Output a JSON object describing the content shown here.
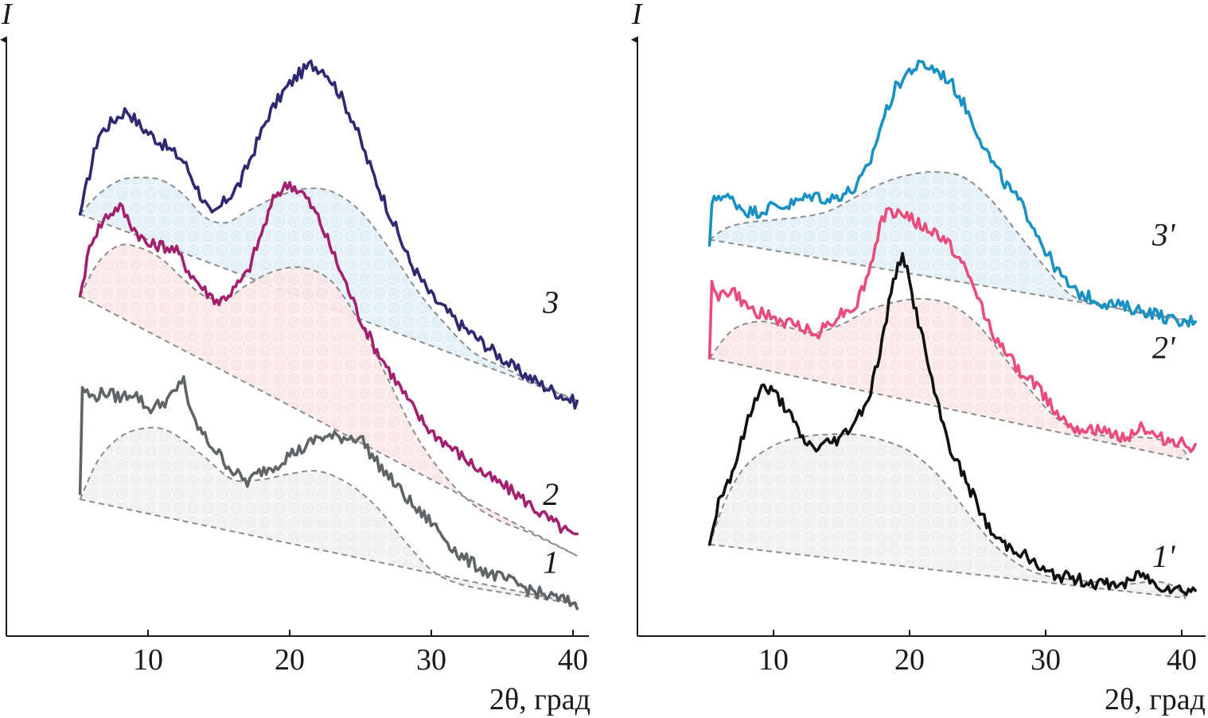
{
  "chart_data": [
    {
      "type": "line",
      "panel": "left",
      "xlabel": "2θ, град",
      "ylabel": "I",
      "xlim": [
        0,
        41
      ],
      "ylim": [
        0,
        100
      ],
      "xticks": [
        10,
        20,
        30,
        40
      ],
      "colors": {
        "1": "#5f6566",
        "2": "#a3206f",
        "3": "#2e2a72",
        "fill_1": "#efefef",
        "fill_2": "#fde3e3",
        "fill_3": "#dcecf6",
        "envelope": "#8c8c8c"
      },
      "series": [
        {
          "name": "3",
          "x": [
            5.2,
            6.5,
            7.5,
            8.5,
            9.5,
            10.5,
            11.5,
            12.5,
            13.5,
            14.5,
            15.5,
            16.5,
            17.5,
            18.5,
            19.5,
            20.5,
            21.5,
            22.5,
            23.5,
            24.5,
            25.5,
            26.5,
            27.5,
            28.5,
            30,
            32,
            34,
            36,
            38,
            40.3
          ],
          "values": [
            70.5,
            84.5,
            87,
            89,
            86,
            84,
            82,
            80,
            75,
            70,
            73,
            76,
            82,
            88,
            92,
            95,
            97,
            96,
            92,
            87,
            80,
            74,
            68,
            62,
            56,
            51,
            47,
            43,
            40,
            37
          ],
          "baseline": [
            {
              "x": 5.2,
              "y": 70.5
            },
            {
              "x": 6.5,
              "y": 74
            },
            {
              "x": 8,
              "y": 76.5
            },
            {
              "x": 9.5,
              "y": 77
            },
            {
              "x": 11,
              "y": 76.5
            },
            {
              "x": 12.5,
              "y": 74
            },
            {
              "x": 14,
              "y": 70
            },
            {
              "x": 15.5,
              "y": 69
            },
            {
              "x": 17,
              "y": 71
            },
            {
              "x": 19,
              "y": 73.5
            },
            {
              "x": 21,
              "y": 75
            },
            {
              "x": 23,
              "y": 74.5
            },
            {
              "x": 25,
              "y": 71
            },
            {
              "x": 27,
              "y": 64.5
            },
            {
              "x": 29,
              "y": 57
            },
            {
              "x": 31,
              "y": 51
            },
            {
              "x": 33,
              "y": 46
            },
            {
              "x": 35,
              "y": 43.5
            },
            {
              "x": 37,
              "y": 41
            },
            {
              "x": 40.3,
              "y": 37.5
            }
          ],
          "floor": [
            5.2,
            70.5,
            40.3,
            37.5
          ]
        },
        {
          "name": "2",
          "x": [
            5.2,
            6.0,
            7.0,
            8.0,
            9.0,
            10.0,
            11.0,
            12.0,
            13.0,
            14.0,
            15.0,
            16.0,
            17.0,
            18.0,
            19.0,
            20.0,
            21.0,
            22.0,
            23.0,
            24.0,
            25.0,
            26.0,
            27.0,
            28.0,
            29.0,
            30.0,
            32.0,
            34.0,
            36.0,
            38.0,
            40.3
          ],
          "values": [
            56,
            66,
            70,
            72,
            68,
            65,
            65,
            64,
            60,
            57,
            55,
            57,
            60,
            67,
            74,
            76,
            74,
            70,
            64,
            58,
            52,
            47,
            43,
            39,
            35,
            32,
            28,
            24,
            21,
            17,
            13
          ],
          "baseline": [
            {
              "x": 5.2,
              "y": 56
            },
            {
              "x": 6.5,
              "y": 62
            },
            {
              "x": 8,
              "y": 65
            },
            {
              "x": 9.5,
              "y": 64.5
            },
            {
              "x": 11,
              "y": 62.5
            },
            {
              "x": 12.5,
              "y": 59
            },
            {
              "x": 14,
              "y": 56
            },
            {
              "x": 15.5,
              "y": 55.5
            },
            {
              "x": 17,
              "y": 58
            },
            {
              "x": 19,
              "y": 60.5
            },
            {
              "x": 21,
              "y": 61
            },
            {
              "x": 23,
              "y": 58.5
            },
            {
              "x": 25,
              "y": 51
            },
            {
              "x": 27,
              "y": 41
            },
            {
              "x": 29,
              "y": 31
            },
            {
              "x": 31,
              "y": 24
            },
            {
              "x": 33,
              "y": 19
            },
            {
              "x": 35,
              "y": 16
            },
            {
              "x": 37,
              "y": 14
            },
            {
              "x": 40.3,
              "y": 10
            }
          ],
          "floor": [
            5.2,
            56,
            40.3,
            10
          ]
        },
        {
          "name": "1",
          "x": [
            5.2,
            5.3,
            6.0,
            7.0,
            8.0,
            9.0,
            10.0,
            11.0,
            12.0,
            12.5,
            13.0,
            14.0,
            15.0,
            16.0,
            17.0,
            18.0,
            19.0,
            20.0,
            21.0,
            22.0,
            23.0,
            24.0,
            25.0,
            26.0,
            27.0,
            28.0,
            29.0,
            30.0,
            31.0,
            32.0,
            34.0,
            36.0,
            38.0,
            40.3
          ],
          "values": [
            21,
            40,
            38,
            39,
            38,
            39,
            36,
            37,
            39,
            42,
            35,
            31,
            28,
            25,
            23,
            25,
            26,
            28,
            29,
            31,
            31,
            31,
            31,
            27,
            24,
            21,
            18,
            16,
            13,
            10,
            7,
            5,
            3,
            1.5
          ],
          "baseline": [
            {
              "x": 5.2,
              "y": 20
            },
            {
              "x": 6.5,
              "y": 27
            },
            {
              "x": 8,
              "y": 31
            },
            {
              "x": 9.5,
              "y": 32.5
            },
            {
              "x": 11,
              "y": 32.5
            },
            {
              "x": 12.5,
              "y": 30.5
            },
            {
              "x": 14,
              "y": 27.5
            },
            {
              "x": 16,
              "y": 23.5
            },
            {
              "x": 18,
              "y": 23.5
            },
            {
              "x": 20,
              "y": 24.5
            },
            {
              "x": 22,
              "y": 25
            },
            {
              "x": 24,
              "y": 23
            },
            {
              "x": 26,
              "y": 19
            },
            {
              "x": 28,
              "y": 13
            },
            {
              "x": 30,
              "y": 7.5
            },
            {
              "x": 32,
              "y": 5
            },
            {
              "x": 35,
              "y": 3.5
            },
            {
              "x": 40.3,
              "y": 1.5
            }
          ],
          "floor": [
            5.2,
            20,
            40.3,
            1.5
          ]
        }
      ],
      "labels": [
        {
          "text": "3",
          "x": 39,
          "y": 53
        },
        {
          "text": "2",
          "x": 39,
          "y": 19
        },
        {
          "text": "1",
          "x": 39,
          "y": 7
        }
      ]
    },
    {
      "type": "line",
      "panel": "right",
      "xlabel": "2θ, град",
      "ylabel": "I",
      "xlim": [
        0,
        41
      ],
      "ylim": [
        0,
        100
      ],
      "xticks": [
        10,
        20,
        30,
        40
      ],
      "colors": {
        "1'": "#111111",
        "2'": "#ea4c7c",
        "3'": "#1a91c4",
        "fill_1": "#efefef",
        "fill_2": "#fde3e3",
        "fill_3": "#dcecf6",
        "envelope": "#8c8c8c"
      },
      "series": [
        {
          "name": "3'",
          "x": [
            5.3,
            5.4,
            6.0,
            7.0,
            8.0,
            9.0,
            10.0,
            11.0,
            12.0,
            13.0,
            14.0,
            15.0,
            16.0,
            17.0,
            18.0,
            19.0,
            20.0,
            21.0,
            22.0,
            23.0,
            24.0,
            25.0,
            26.0,
            27.0,
            28.0,
            29.0,
            30.0,
            31.0,
            32.0,
            34.0,
            36.0,
            38.0,
            40.0,
            41.0
          ],
          "values": [
            65,
            72,
            74,
            73,
            71,
            71,
            72,
            72,
            73,
            74,
            73,
            74,
            75,
            79,
            87,
            93,
            96,
            97,
            96,
            94,
            90,
            85,
            80,
            76,
            73,
            69,
            64,
            60,
            57,
            55,
            54,
            53,
            51,
            52
          ],
          "baseline": [
            {
              "x": 5.3,
              "y": 66
            },
            {
              "x": 6.5,
              "y": 68
            },
            {
              "x": 8,
              "y": 69
            },
            {
              "x": 10,
              "y": 69.5
            },
            {
              "x": 12,
              "y": 70
            },
            {
              "x": 14,
              "y": 71
            },
            {
              "x": 16,
              "y": 73.5
            },
            {
              "x": 18,
              "y": 76
            },
            {
              "x": 20,
              "y": 77.5
            },
            {
              "x": 22,
              "y": 78
            },
            {
              "x": 24,
              "y": 77
            },
            {
              "x": 26,
              "y": 73
            },
            {
              "x": 28,
              "y": 67
            },
            {
              "x": 30,
              "y": 61
            },
            {
              "x": 32,
              "y": 56
            },
            {
              "x": 35,
              "y": 54
            },
            {
              "x": 38,
              "y": 52.5
            },
            {
              "x": 41,
              "y": 51.5
            }
          ],
          "floor": [
            5.3,
            66,
            41,
            51.5
          ]
        },
        {
          "name": "2'",
          "x": [
            5.3,
            5.4,
            6.0,
            7.0,
            8.0,
            9.0,
            10.0,
            11.0,
            12.0,
            13.0,
            14.0,
            15.0,
            16.0,
            17.0,
            18.0,
            19.0,
            20.0,
            21.0,
            22.0,
            23.0,
            24.0,
            25.0,
            26.0,
            27.0,
            28.0,
            29.0,
            30.0,
            31.0,
            32.0,
            34.0,
            36.0,
            37.0,
            38.0,
            40.0,
            41.0
          ],
          "values": [
            45,
            59,
            56,
            57,
            54,
            53,
            52,
            51,
            51,
            49,
            51,
            53,
            54,
            60,
            70,
            71,
            70,
            68,
            67,
            65,
            61,
            56,
            50,
            46,
            43,
            41,
            38,
            35,
            33,
            32,
            31,
            33,
            31,
            30,
            29
          ],
          "baseline": [
            {
              "x": 5.3,
              "y": 45
            },
            {
              "x": 7,
              "y": 50
            },
            {
              "x": 9,
              "y": 51.5
            },
            {
              "x": 11,
              "y": 50.5
            },
            {
              "x": 13,
              "y": 49.5
            },
            {
              "x": 15,
              "y": 51
            },
            {
              "x": 17,
              "y": 53.5
            },
            {
              "x": 19,
              "y": 55
            },
            {
              "x": 21,
              "y": 55.5
            },
            {
              "x": 23,
              "y": 54.5
            },
            {
              "x": 25,
              "y": 51
            },
            {
              "x": 27,
              "y": 45
            },
            {
              "x": 29,
              "y": 39
            },
            {
              "x": 31,
              "y": 34
            },
            {
              "x": 33,
              "y": 32
            },
            {
              "x": 35,
              "y": 31
            },
            {
              "x": 37,
              "y": 31
            },
            {
              "x": 38.5,
              "y": 30.5
            },
            {
              "x": 40,
              "y": 29
            },
            {
              "x": 40.5,
              "y": 27
            }
          ],
          "floor": [
            5.3,
            45,
            40.5,
            27
          ]
        },
        {
          "name": "1'",
          "x": [
            5.3,
            6.0,
            7.0,
            8.0,
            9.0,
            10.0,
            11.0,
            12.0,
            13.0,
            14.0,
            15.0,
            16.0,
            17.0,
            18.0,
            18.5,
            19.0,
            19.5,
            20.0,
            21.0,
            22.0,
            23.0,
            24.0,
            25.0,
            26.0,
            27.0,
            28.0,
            29.0,
            30.0,
            32.0,
            34.0,
            36.0,
            37.0,
            38.0,
            40.0,
            41.0
          ],
          "values": [
            12,
            20,
            25,
            33,
            40,
            39,
            36,
            31,
            29,
            30,
            31,
            34,
            38,
            48,
            55,
            60,
            64,
            58,
            48,
            37,
            29,
            24,
            19,
            14,
            12,
            11,
            9,
            7,
            6,
            5,
            5,
            7,
            5,
            4,
            4
          ],
          "baseline": [
            {
              "x": 5.3,
              "y": 12
            },
            {
              "x": 6.5,
              "y": 20
            },
            {
              "x": 8,
              "y": 26
            },
            {
              "x": 10,
              "y": 29.5
            },
            {
              "x": 12,
              "y": 31
            },
            {
              "x": 14,
              "y": 31.5
            },
            {
              "x": 16,
              "y": 31.5
            },
            {
              "x": 18,
              "y": 30.5
            },
            {
              "x": 20,
              "y": 28.5
            },
            {
              "x": 22,
              "y": 24.5
            },
            {
              "x": 24,
              "y": 18.5
            },
            {
              "x": 26,
              "y": 12.5
            },
            {
              "x": 28,
              "y": 8.5
            },
            {
              "x": 30,
              "y": 6.5
            },
            {
              "x": 33,
              "y": 5.5
            },
            {
              "x": 36,
              "y": 5
            },
            {
              "x": 38,
              "y": 5.5
            },
            {
              "x": 39.5,
              "y": 4.5
            },
            {
              "x": 40.3,
              "y": 2.5
            }
          ],
          "floor": [
            5.3,
            12,
            40.3,
            2.5
          ]
        }
      ],
      "labels": [
        {
          "text": "3'",
          "x": 39,
          "y": 65
        },
        {
          "text": "2'",
          "x": 39,
          "y": 45
        },
        {
          "text": "1'",
          "x": 39,
          "y": 8
        }
      ]
    }
  ]
}
